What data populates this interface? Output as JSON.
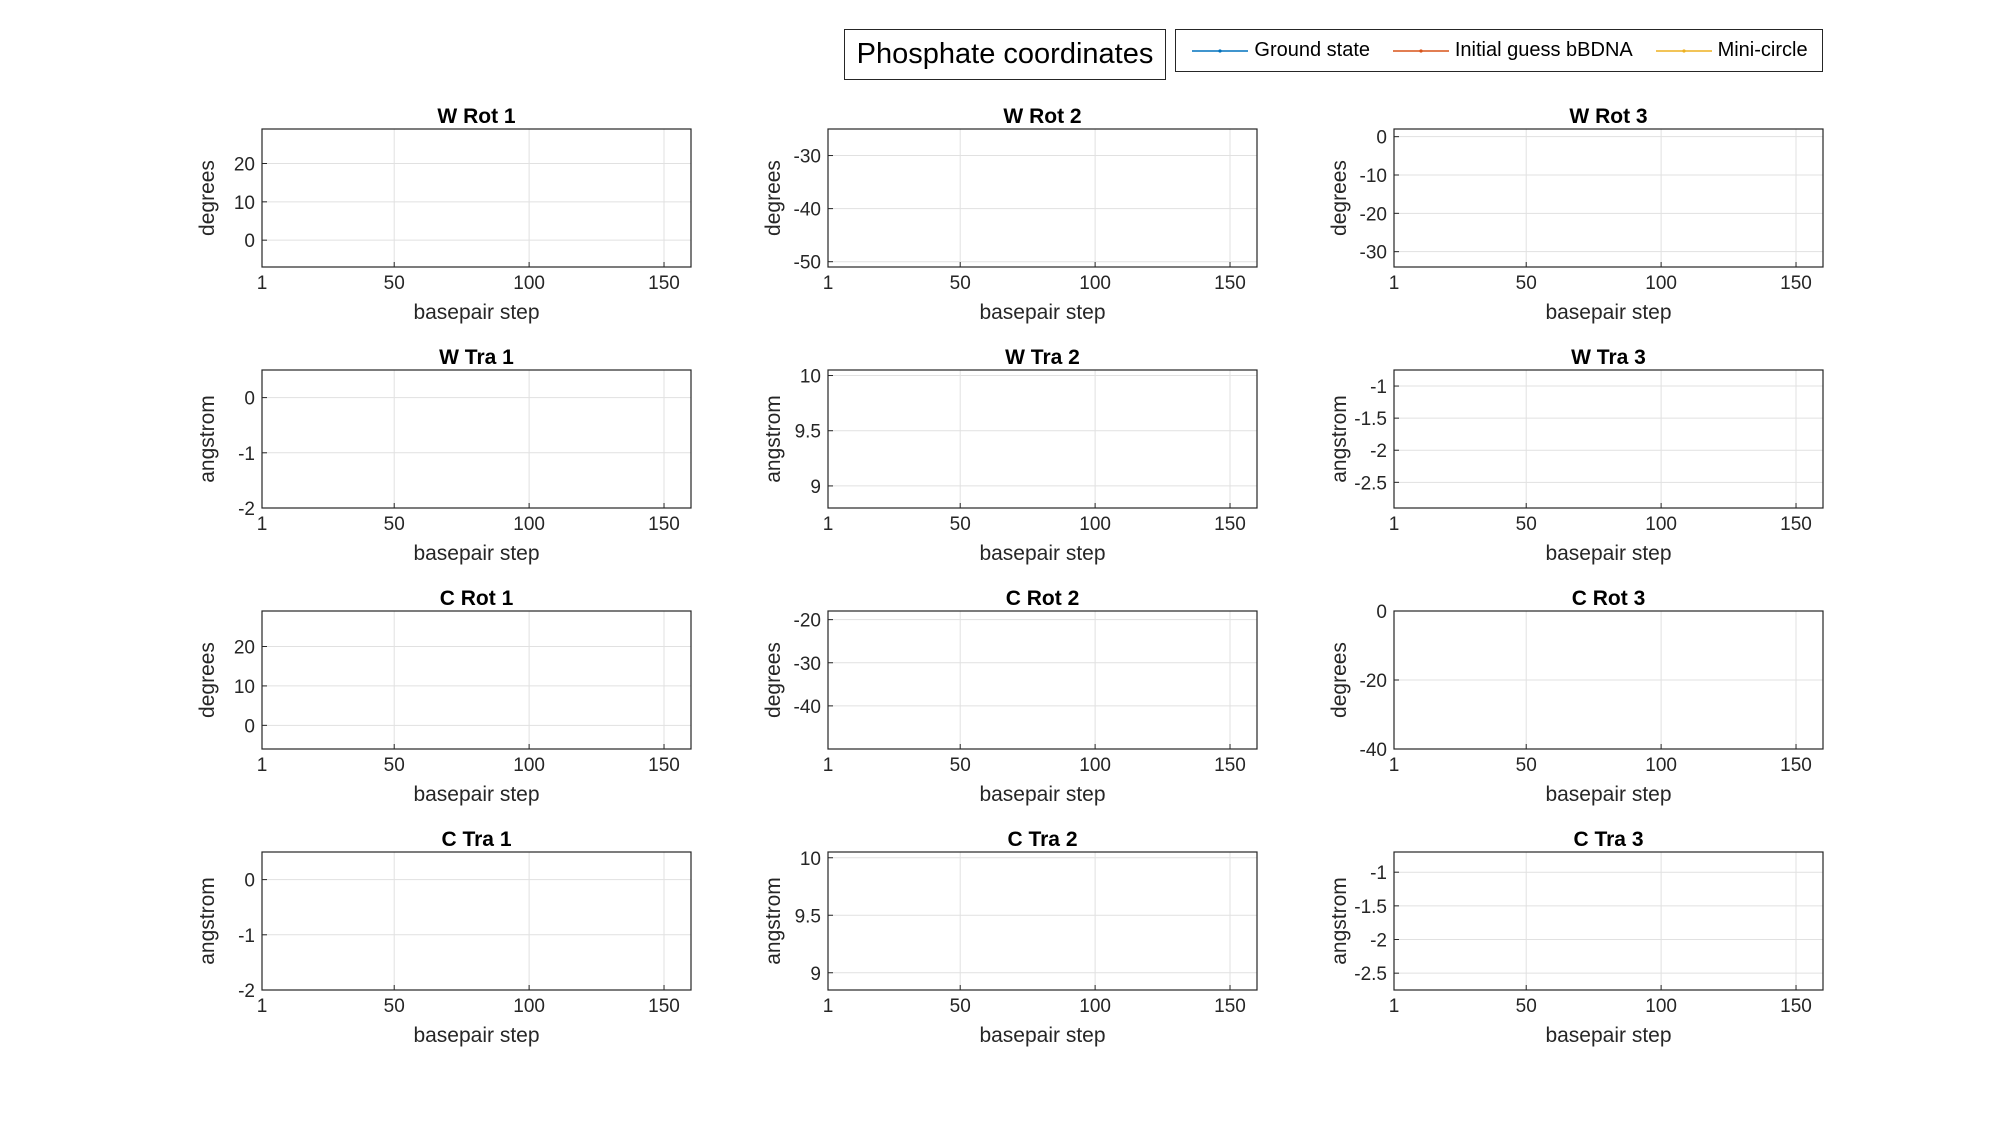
{
  "figure": {
    "title": "Phosphate coordinates",
    "legend": [
      "Ground state",
      "Initial guess bBDNA",
      "Mini-circle"
    ]
  },
  "colors": {
    "ground_state": "#0072BD",
    "initial_guess": "#D95319",
    "mini_circle": "#EDB120",
    "axis": "#262626",
    "grid": "#e1e1e1"
  },
  "chart_data": [
    {
      "type": "line",
      "title": "W Rot 1",
      "xlabel": "basepair step",
      "ylabel": "degrees",
      "xlim": [
        1,
        160
      ],
      "xticks": [
        1,
        50,
        100,
        150
      ],
      "ylim": [
        -7,
        29
      ],
      "yticks": [
        0,
        10,
        20
      ],
      "grid": true,
      "series": [
        {
          "name": "Ground state",
          "values": []
        },
        {
          "name": "Initial guess bBDNA",
          "values": []
        },
        {
          "name": "Mini-circle",
          "values": []
        }
      ]
    },
    {
      "type": "line",
      "title": "W Rot 2",
      "xlabel": "basepair step",
      "ylabel": "degrees",
      "xlim": [
        1,
        160
      ],
      "xticks": [
        1,
        50,
        100,
        150
      ],
      "ylim": [
        -51,
        -25
      ],
      "yticks": [
        -50,
        -40,
        -30
      ],
      "grid": true,
      "series": [
        {
          "name": "Ground state",
          "values": []
        },
        {
          "name": "Initial guess bBDNA",
          "values": []
        },
        {
          "name": "Mini-circle",
          "values": []
        }
      ]
    },
    {
      "type": "line",
      "title": "W Rot 3",
      "xlabel": "basepair step",
      "ylabel": "degrees",
      "xlim": [
        1,
        160
      ],
      "xticks": [
        1,
        50,
        100,
        150
      ],
      "ylim": [
        -34,
        2
      ],
      "yticks": [
        -30,
        -20,
        -10,
        0
      ],
      "grid": true,
      "series": [
        {
          "name": "Ground state",
          "values": []
        },
        {
          "name": "Initial guess bBDNA",
          "values": []
        },
        {
          "name": "Mini-circle",
          "values": []
        }
      ]
    },
    {
      "type": "line",
      "title": "W Tra 1",
      "xlabel": "basepair step",
      "ylabel": "angstrom",
      "xlim": [
        1,
        160
      ],
      "xticks": [
        1,
        50,
        100,
        150
      ],
      "ylim": [
        -2,
        0.5
      ],
      "yticks": [
        -2,
        -1,
        0
      ],
      "grid": true,
      "series": [
        {
          "name": "Ground state",
          "values": []
        },
        {
          "name": "Initial guess bBDNA",
          "values": []
        },
        {
          "name": "Mini-circle",
          "values": []
        }
      ]
    },
    {
      "type": "line",
      "title": "W Tra 2",
      "xlabel": "basepair step",
      "ylabel": "angstrom",
      "xlim": [
        1,
        160
      ],
      "xticks": [
        1,
        50,
        100,
        150
      ],
      "ylim": [
        8.8,
        10.05
      ],
      "yticks": [
        9,
        9.5,
        10
      ],
      "grid": true,
      "series": [
        {
          "name": "Ground state",
          "values": []
        },
        {
          "name": "Initial guess bBDNA",
          "values": []
        },
        {
          "name": "Mini-circle",
          "values": []
        }
      ]
    },
    {
      "type": "line",
      "title": "W Tra 3",
      "xlabel": "basepair step",
      "ylabel": "angstrom",
      "xlim": [
        1,
        160
      ],
      "xticks": [
        1,
        50,
        100,
        150
      ],
      "ylim": [
        -2.9,
        -0.75
      ],
      "yticks": [
        -2.5,
        -2,
        -1.5,
        -1
      ],
      "grid": true,
      "series": [
        {
          "name": "Ground state",
          "values": []
        },
        {
          "name": "Initial guess bBDNA",
          "values": []
        },
        {
          "name": "Mini-circle",
          "values": []
        }
      ]
    },
    {
      "type": "line",
      "title": "C Rot 1",
      "xlabel": "basepair step",
      "ylabel": "degrees",
      "xlim": [
        1,
        160
      ],
      "xticks": [
        1,
        50,
        100,
        150
      ],
      "ylim": [
        -6,
        29
      ],
      "yticks": [
        0,
        10,
        20
      ],
      "grid": true,
      "series": [
        {
          "name": "Ground state",
          "values": []
        },
        {
          "name": "Initial guess bBDNA",
          "values": []
        },
        {
          "name": "Mini-circle",
          "values": []
        }
      ]
    },
    {
      "type": "line",
      "title": "C Rot 2",
      "xlabel": "basepair step",
      "ylabel": "degrees",
      "xlim": [
        1,
        160
      ],
      "xticks": [
        1,
        50,
        100,
        150
      ],
      "ylim": [
        -50,
        -18
      ],
      "yticks": [
        -40,
        -30,
        -20
      ],
      "grid": true,
      "series": [
        {
          "name": "Ground state",
          "values": []
        },
        {
          "name": "Initial guess bBDNA",
          "values": []
        },
        {
          "name": "Mini-circle",
          "values": []
        }
      ]
    },
    {
      "type": "line",
      "title": "C Rot 3",
      "xlabel": "basepair step",
      "ylabel": "degrees",
      "xlim": [
        1,
        160
      ],
      "xticks": [
        1,
        50,
        100,
        150
      ],
      "ylim": [
        -40,
        0
      ],
      "yticks": [
        -40,
        -20,
        0
      ],
      "grid": true,
      "series": [
        {
          "name": "Ground state",
          "values": []
        },
        {
          "name": "Initial guess bBDNA",
          "values": []
        },
        {
          "name": "Mini-circle",
          "values": []
        }
      ]
    },
    {
      "type": "line",
      "title": "C Tra 1",
      "xlabel": "basepair step",
      "ylabel": "angstrom",
      "xlim": [
        1,
        160
      ],
      "xticks": [
        1,
        50,
        100,
        150
      ],
      "ylim": [
        -2,
        0.5
      ],
      "yticks": [
        -2,
        -1,
        0
      ],
      "grid": true,
      "series": [
        {
          "name": "Ground state",
          "values": []
        },
        {
          "name": "Initial guess bBDNA",
          "values": []
        },
        {
          "name": "Mini-circle",
          "values": []
        }
      ]
    },
    {
      "type": "line",
      "title": "C Tra 2",
      "xlabel": "basepair step",
      "ylabel": "angstrom",
      "xlim": [
        1,
        160
      ],
      "xticks": [
        1,
        50,
        100,
        150
      ],
      "ylim": [
        8.85,
        10.05
      ],
      "yticks": [
        9,
        9.5,
        10
      ],
      "grid": true,
      "series": [
        {
          "name": "Ground state",
          "values": []
        },
        {
          "name": "Initial guess bBDNA",
          "values": []
        },
        {
          "name": "Mini-circle",
          "values": []
        }
      ]
    },
    {
      "type": "line",
      "title": "C Tra 3",
      "xlabel": "basepair step",
      "ylabel": "angstrom",
      "xlim": [
        1,
        160
      ],
      "xticks": [
        1,
        50,
        100,
        150
      ],
      "ylim": [
        -2.75,
        -0.7
      ],
      "yticks": [
        -2.5,
        -2,
        -1.5,
        -1
      ],
      "grid": true,
      "series": [
        {
          "name": "Ground state",
          "values": []
        },
        {
          "name": "Initial guess bBDNA",
          "values": []
        },
        {
          "name": "Mini-circle",
          "values": []
        }
      ]
    }
  ]
}
